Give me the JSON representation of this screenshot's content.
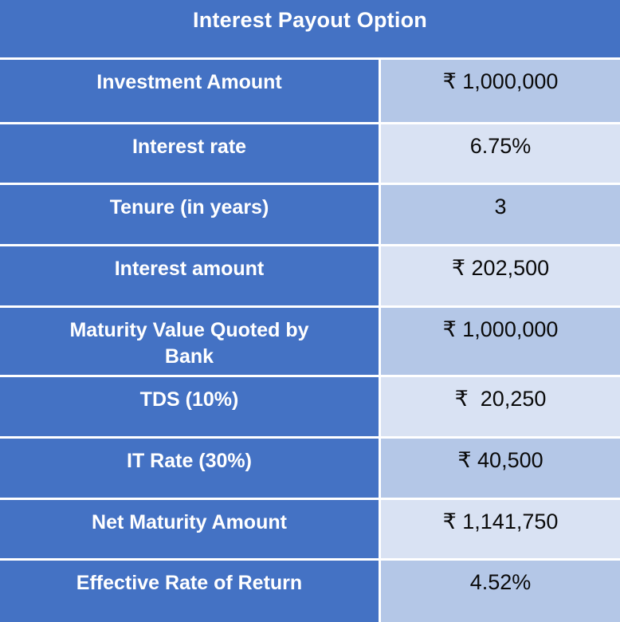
{
  "title": "Interest Payout Option",
  "colors": {
    "header_blue": "#4472C4",
    "value_band_dark": "#B4C7E7",
    "value_band_light": "#D9E2F3",
    "label_text": "#FFFFFF",
    "value_text": "#0A0A0A",
    "grid_line": "#FFFFFF"
  },
  "table": {
    "rows": [
      {
        "label": "Investment Amount",
        "value": "₹ 1,000,000",
        "shade": "dark"
      },
      {
        "label": "Interest rate",
        "value": "6.75%",
        "shade": "light"
      },
      {
        "label": "Tenure (in years)",
        "value": "3",
        "shade": "dark"
      },
      {
        "label": "Interest amount",
        "value": "₹ 202,500",
        "shade": "light"
      },
      {
        "label": "Maturity Value Quoted by Bank",
        "value": "₹ 1,000,000",
        "shade": "dark"
      },
      {
        "label": "TDS (10%)",
        "value": "₹  20,250",
        "shade": "light"
      },
      {
        "label": "IT Rate (30%)",
        "value": "₹ 40,500",
        "shade": "dark"
      },
      {
        "label": "Net Maturity Amount",
        "value": "₹ 1,141,750",
        "shade": "light"
      },
      {
        "label": "Effective Rate of Return",
        "value": "4.52%",
        "shade": "dark"
      }
    ]
  }
}
